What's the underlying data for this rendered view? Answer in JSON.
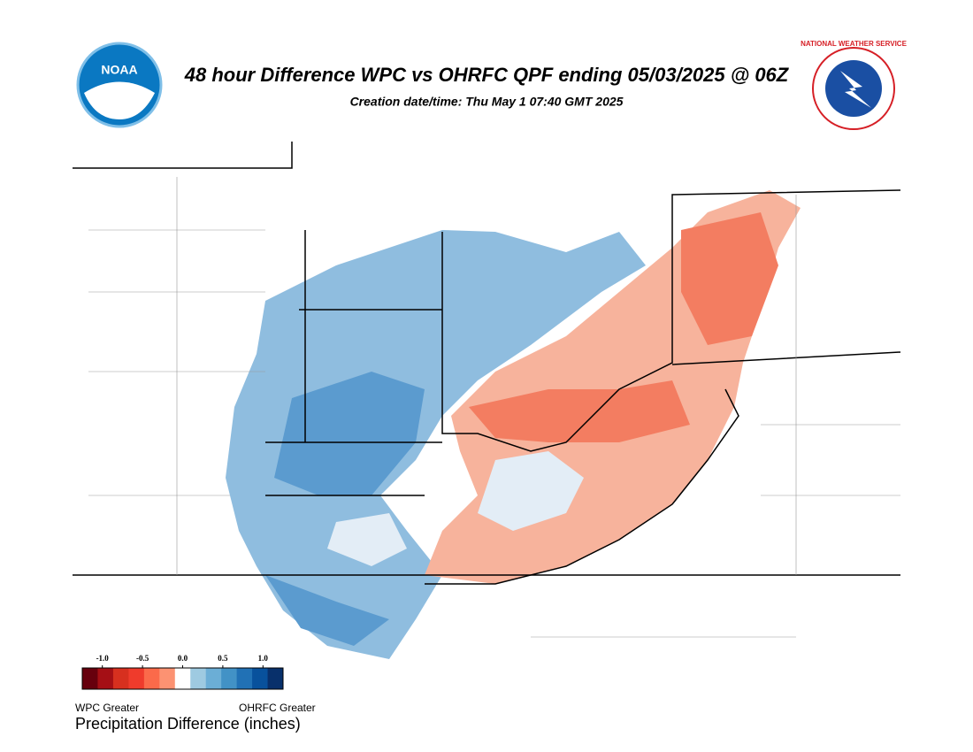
{
  "header": {
    "title": "48 hour Difference WPC vs OHRFC QPF ending 05/03/2025 @ 06Z",
    "subtitle": "Creation date/time: Thu May  1 07:40 GMT 2025",
    "left_logo": "NOAA",
    "right_logo": "NATIONAL WEATHER SERVICE"
  },
  "colorbar": {
    "lim": [
      -1.25,
      1.25
    ],
    "colors": [
      "#67000d",
      "#a50f15",
      "#d7301f",
      "#ef3b2c",
      "#fb6a4a",
      "#fc9272",
      "#ffffff",
      "#9ecae1",
      "#6baed6",
      "#4292c6",
      "#2171b5",
      "#08519c",
      "#08306b"
    ],
    "ticks": [
      {
        "value": -1,
        "label": "-1.0"
      },
      {
        "value": -0.5,
        "label": "-0.5"
      },
      {
        "value": 0,
        "label": "0.0"
      },
      {
        "value": 0.5,
        "label": "0.5"
      },
      {
        "value": 1,
        "label": "1.0"
      }
    ],
    "left_note": "WPC Greater",
    "right_note": "OHRFC Greater",
    "title": "Precipitation Difference (inches)"
  }
}
